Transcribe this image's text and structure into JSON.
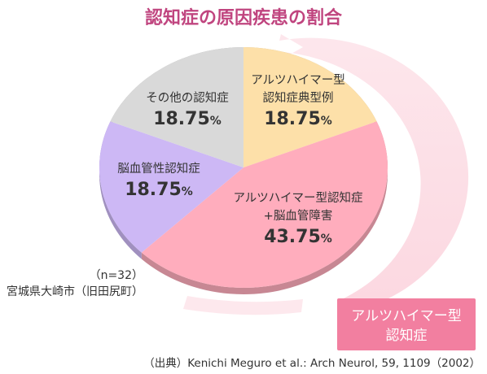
{
  "chart_data": {
    "type": "pie",
    "title": "認知症の原因疾患の割合",
    "slices": [
      {
        "label_lines": [
          "アルツハイマー型",
          "認知症典型例"
        ],
        "value": 18.75,
        "value_text": "18.75",
        "unit": "%",
        "color": "#fde0a9"
      },
      {
        "label_lines": [
          "アルツハイマー型認知症",
          "+脳血管障害"
        ],
        "value": 43.75,
        "value_text": "43.75",
        "unit": "%",
        "color": "#ffadbd"
      },
      {
        "label_lines": [
          "脳血管性認知症"
        ],
        "value": 18.75,
        "value_text": "18.75",
        "unit": "%",
        "color": "#cdb8f5"
      },
      {
        "label_lines": [
          "その他の認知症"
        ],
        "value": 18.75,
        "value_text": "18.75",
        "unit": "%",
        "color": "#d9d9d9"
      }
    ],
    "sample_note": "（n=32）",
    "region_note": "宮城県大崎市（旧田尻町）",
    "callout_lines": [
      "アルツハイマー型",
      "認知症"
    ],
    "callout_color": "#f27fa0",
    "source": "（出典）Kenichi Meguro et al.: Arch Neurol, 59, 1109（2002）"
  }
}
